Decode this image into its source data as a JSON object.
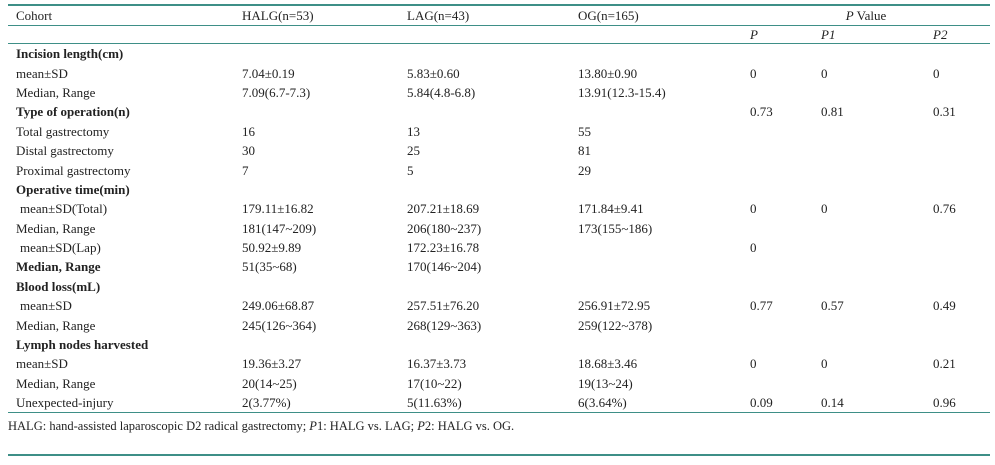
{
  "header": {
    "cohort": "Cohort",
    "halg": "HALG(n=53)",
    "lag": "LAG(n=43)",
    "og": "OG(n=165)",
    "pvalue_p": "P",
    "pvalue_rest": " Value",
    "p": "P",
    "p1": "P1",
    "p2": "P2"
  },
  "rows": [
    {
      "label": "Incision length(cm)",
      "bold": true,
      "halg": "",
      "lag": "",
      "og": "",
      "p": "",
      "p1": "",
      "p2": ""
    },
    {
      "label": "mean±SD",
      "bold": false,
      "halg": "7.04±0.19",
      "lag": "5.83±0.60",
      "og": "13.80±0.90",
      "p": "0",
      "p1": "0",
      "p2": "0"
    },
    {
      "label": "Median, Range",
      "bold": false,
      "halg": "7.09(6.7-7.3)",
      "lag": "5.84(4.8-6.8)",
      "og": "13.91(12.3-15.4)",
      "p": "",
      "p1": "",
      "p2": ""
    },
    {
      "label": "Type of operation(n)",
      "bold": true,
      "halg": "",
      "lag": "",
      "og": "",
      "p": "0.73",
      "p1": "0.81",
      "p2": "0.31"
    },
    {
      "label": "Total gastrectomy",
      "bold": false,
      "halg": "16",
      "lag": "13",
      "og": "55",
      "p": "",
      "p1": "",
      "p2": ""
    },
    {
      "label": "Distal gastrectomy",
      "bold": false,
      "halg": "30",
      "lag": "25",
      "og": "81",
      "p": "",
      "p1": "",
      "p2": ""
    },
    {
      "label": "Proximal gastrectomy",
      "bold": false,
      "halg": "7",
      "lag": "5",
      "og": "29",
      "p": "",
      "p1": "",
      "p2": ""
    },
    {
      "label": "Operative time(min)",
      "bold": true,
      "halg": "",
      "lag": "",
      "og": "",
      "p": "",
      "p1": "",
      "p2": ""
    },
    {
      "label": " mean±SD(Total)",
      "bold": false,
      "halg": "179.11±16.82",
      "lag": "207.21±18.69",
      "og": "171.84±9.41",
      "p": "0",
      "p1": "0",
      "p2": "0.76"
    },
    {
      "label": "Median, Range",
      "bold": false,
      "halg": "181(147~209)",
      "lag": "206(180~237)",
      "og": "173(155~186)",
      "p": "",
      "p1": "",
      "p2": ""
    },
    {
      "label": " mean±SD(Lap)",
      "bold": false,
      "halg": "50.92±9.89",
      "lag": "172.23±16.78",
      "og": "",
      "p": "0",
      "p1": "",
      "p2": ""
    },
    {
      "label": "Median, Range",
      "bold": true,
      "halg": "51(35~68)",
      "lag": "170(146~204)",
      "og": "",
      "p": "",
      "p1": "",
      "p2": ""
    },
    {
      "label": "Blood loss(mL)",
      "bold": true,
      "halg": "",
      "lag": "",
      "og": "",
      "p": "",
      "p1": "",
      "p2": ""
    },
    {
      "label": " mean±SD",
      "bold": false,
      "halg": "249.06±68.87",
      "lag": "257.51±76.20",
      "og": "256.91±72.95",
      "p": "0.77",
      "p1": "0.57",
      "p2": "0.49"
    },
    {
      "label": "Median, Range",
      "bold": false,
      "halg": "245(126~364)",
      "lag": "268(129~363)",
      "og": "259(122~378)",
      "p": "",
      "p1": "",
      "p2": ""
    },
    {
      "label": "Lymph nodes harvested",
      "bold": true,
      "halg": "",
      "lag": "",
      "og": "",
      "p": "",
      "p1": "",
      "p2": ""
    },
    {
      "label": "mean±SD",
      "bold": false,
      "halg": "19.36±3.27",
      "lag": "16.37±3.73",
      "og": "18.68±3.46",
      "p": "0",
      "p1": "0",
      "p2": "0.21"
    },
    {
      "label": "Median, Range",
      "bold": false,
      "halg": "20(14~25)",
      "lag": "17(10~22)",
      "og": "19(13~24)",
      "p": "",
      "p1": "",
      "p2": ""
    },
    {
      "label": "Unexpected-injury",
      "bold": false,
      "halg": "2(3.77%)",
      "lag": "5(11.63%)",
      "og": "6(3.64%)",
      "p": "0.09",
      "p1": "0.14",
      "p2": "0.96"
    }
  ],
  "footnote": {
    "part1": "HALG: hand-assisted laparoscopic D2 radical gastrectomy; ",
    "p1": "P",
    "part2": "1: HALG vs. LAG; ",
    "p2": "P",
    "part3": "2: HALG vs. OG."
  }
}
